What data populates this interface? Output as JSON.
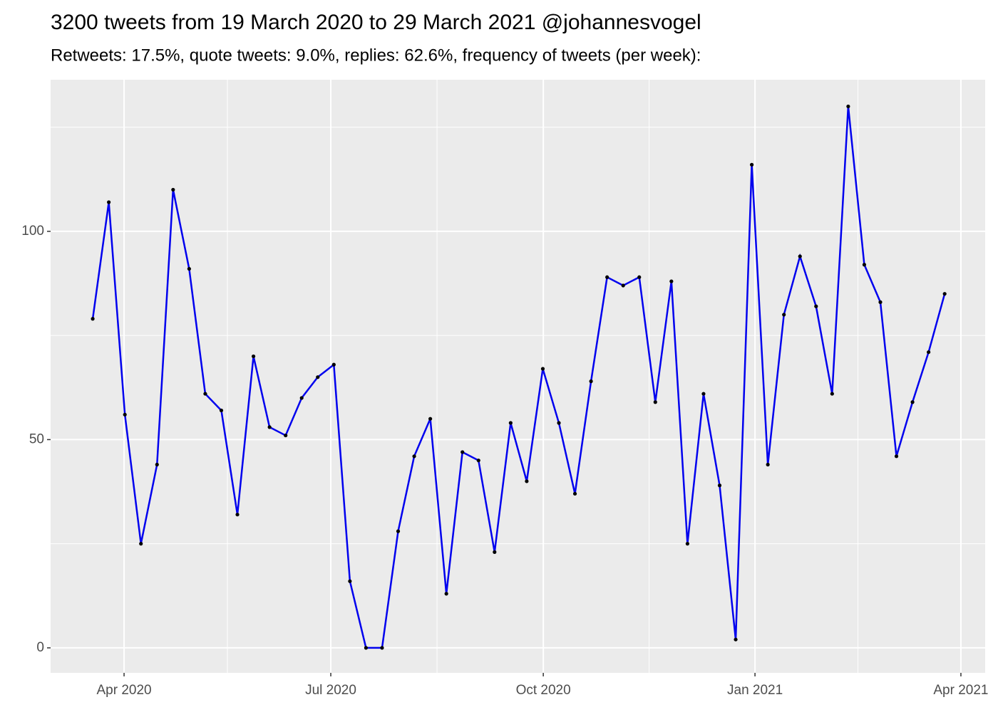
{
  "chart_data": {
    "type": "line",
    "title": "3200 tweets from 19 March 2020 to 29 March 2021 @johannesvogel",
    "subtitle": "Retweets: 17.5%, quote tweets: 9.0%, replies: 62.6%, frequency of tweets (per week):",
    "categories": [
      null,
      null,
      null,
      null,
      null,
      null,
      null,
      null,
      null,
      null,
      null,
      null,
      null,
      null,
      null,
      null,
      null,
      null,
      null,
      null,
      null,
      null,
      null,
      null,
      null,
      null,
      null,
      null,
      null,
      null,
      null,
      null,
      null,
      null,
      null,
      null,
      null,
      null,
      null,
      null,
      null,
      null,
      null,
      null,
      null,
      null,
      null,
      null,
      null,
      null,
      null,
      null,
      null,
      null
    ],
    "series": [
      {
        "color": "#0000ee",
        "marker_color": "#000000",
        "values": [
          79,
          107,
          56,
          25,
          44,
          110,
          91,
          61,
          57,
          32,
          70,
          53,
          51,
          60,
          65,
          68,
          16,
          0,
          0,
          28,
          46,
          55,
          13,
          47,
          45,
          23,
          54,
          40,
          67,
          54,
          37,
          64,
          89,
          87,
          89,
          59,
          88,
          25,
          61,
          39,
          2,
          116,
          44,
          80,
          94,
          82,
          61,
          130,
          92,
          83,
          46,
          59,
          71,
          85
        ]
      }
    ],
    "xlim": [
      -2.62,
      55.52
    ],
    "xticks": [
      {
        "value": 1.95,
        "label": "Apr 2020"
      },
      {
        "value": 14.81,
        "label": "Jul 2020"
      },
      {
        "value": 28.03,
        "label": "Oct 2020"
      },
      {
        "value": 41.2,
        "label": "Jan 2021"
      },
      {
        "value": 54.01,
        "label": "Apr 2021"
      }
    ],
    "ylim": [
      -6,
      136.4
    ],
    "yticks": [
      0,
      50,
      100
    ],
    "grid": true
  }
}
